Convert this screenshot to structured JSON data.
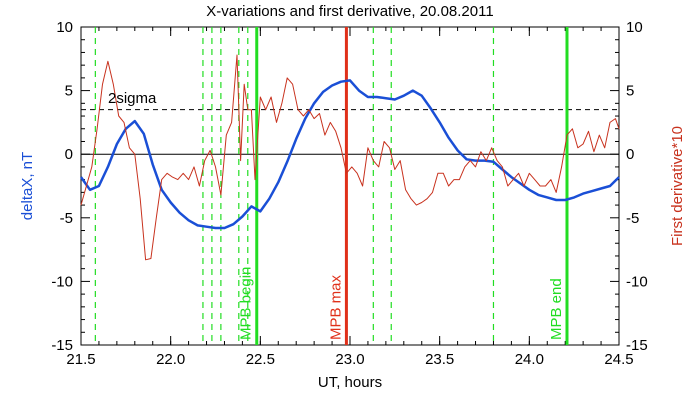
{
  "chart_data": {
    "type": "line",
    "title": "X-variations and first derivative, 20.08.2011",
    "xlabel": "UT, hours",
    "ylabel_left": "deltaX, nT",
    "ylabel_right": "First derivative*10",
    "xlim": [
      21.5,
      24.5
    ],
    "ylim": [
      -15,
      10
    ],
    "x_ticks": [
      21.5,
      22.0,
      22.5,
      23.0,
      23.5,
      24.0,
      24.5
    ],
    "x_tick_labels": [
      "21.5",
      "22.0",
      "22.5",
      "23.0",
      "23.5",
      "24.0",
      "24.5"
    ],
    "y_ticks": [
      -15,
      -10,
      -5,
      0,
      5,
      10
    ],
    "y_tick_labels": [
      "-15",
      "-10",
      "-5",
      "0",
      "5",
      "10"
    ],
    "grid": false,
    "zero_line": 0,
    "threshold": {
      "label": "2sigma",
      "value": 3.5,
      "style": "dashed"
    },
    "colors": {
      "deltaX": "#1a4fd6",
      "derivative": "#c8321e",
      "mpb_max": "#e0301a",
      "mpb_boundary": "#22dd22",
      "dashed_marker": "#22dd22",
      "axes": "#000000"
    },
    "series": [
      {
        "name": "deltaX, nT",
        "axis": "left",
        "x": [
          21.5,
          21.55,
          21.6,
          21.65,
          21.7,
          21.75,
          21.8,
          21.85,
          21.9,
          21.95,
          22.0,
          22.05,
          22.1,
          22.15,
          22.2,
          22.25,
          22.3,
          22.35,
          22.4,
          22.45,
          22.5,
          22.55,
          22.6,
          22.65,
          22.7,
          22.75,
          22.8,
          22.85,
          22.9,
          22.95,
          23.0,
          23.05,
          23.1,
          23.15,
          23.2,
          23.25,
          23.3,
          23.35,
          23.4,
          23.45,
          23.5,
          23.55,
          23.6,
          23.65,
          23.7,
          23.75,
          23.8,
          23.85,
          23.9,
          23.95,
          24.0,
          24.05,
          24.1,
          24.15,
          24.2,
          24.25,
          24.3,
          24.35,
          24.4,
          24.45,
          24.5
        ],
        "y": [
          -1.8,
          -2.8,
          -2.5,
          -1.0,
          0.8,
          2.0,
          2.6,
          1.6,
          -0.8,
          -2.8,
          -3.8,
          -4.6,
          -5.2,
          -5.6,
          -5.7,
          -5.8,
          -5.8,
          -5.5,
          -4.9,
          -4.1,
          -4.5,
          -3.5,
          -2.2,
          -0.6,
          1.2,
          2.8,
          4.0,
          4.9,
          5.4,
          5.7,
          5.8,
          5.0,
          4.5,
          4.5,
          4.4,
          4.3,
          4.6,
          5.0,
          4.6,
          3.6,
          2.5,
          1.3,
          0.3,
          -0.4,
          -0.5,
          -0.5,
          -0.6,
          -1.2,
          -1.8,
          -2.3,
          -2.8,
          -3.2,
          -3.4,
          -3.6,
          -3.6,
          -3.4,
          -3.1,
          -2.9,
          -2.7,
          -2.5,
          -1.8
        ]
      },
      {
        "name": "First derivative*10",
        "axis": "right",
        "x": [
          21.5,
          21.53,
          21.56,
          21.59,
          21.62,
          21.65,
          21.68,
          21.71,
          21.74,
          21.77,
          21.8,
          21.83,
          21.86,
          21.89,
          21.92,
          21.95,
          21.98,
          22.01,
          22.04,
          22.07,
          22.1,
          22.13,
          22.16,
          22.19,
          22.22,
          22.25,
          22.28,
          22.31,
          22.34,
          22.37,
          22.39,
          22.41,
          22.43,
          22.45,
          22.47,
          22.5,
          22.53,
          22.56,
          22.59,
          22.62,
          22.65,
          22.68,
          22.71,
          22.74,
          22.77,
          22.8,
          22.83,
          22.86,
          22.89,
          22.92,
          22.95,
          22.98,
          23.01,
          23.04,
          23.07,
          23.1,
          23.13,
          23.16,
          23.19,
          23.22,
          23.25,
          23.28,
          23.31,
          23.34,
          23.37,
          23.4,
          23.43,
          23.46,
          23.49,
          23.52,
          23.55,
          23.58,
          23.61,
          23.64,
          23.67,
          23.7,
          23.73,
          23.76,
          23.79,
          23.82,
          23.85,
          23.88,
          23.91,
          23.94,
          23.97,
          24.0,
          24.03,
          24.06,
          24.09,
          24.12,
          24.15,
          24.18,
          24.21,
          24.24,
          24.27,
          24.3,
          24.33,
          24.36,
          24.39,
          24.42,
          24.45,
          24.48,
          24.5
        ],
        "y": [
          -4.0,
          -2.5,
          -1.0,
          2.0,
          5.5,
          7.3,
          5.5,
          3.0,
          2.5,
          0.5,
          0.0,
          -3.5,
          -8.3,
          -8.2,
          -5.0,
          -2.0,
          -1.5,
          -1.8,
          -2.0,
          -1.5,
          -2.0,
          -1.0,
          -2.5,
          -0.5,
          0.3,
          -1.0,
          -3.2,
          1.5,
          2.5,
          7.8,
          -0.5,
          5.5,
          3.5,
          3.5,
          -2.0,
          4.5,
          3.5,
          4.5,
          2.5,
          4.0,
          6.0,
          5.5,
          3.5,
          3.0,
          3.5,
          2.8,
          3.2,
          1.5,
          2.5,
          1.8,
          0.5,
          -1.5,
          -1.0,
          -1.5,
          -2.5,
          0.5,
          -0.5,
          -1.0,
          1.0,
          0.5,
          -1.2,
          -0.5,
          -2.8,
          -3.5,
          -4.0,
          -3.8,
          -3.5,
          -3.0,
          -1.5,
          -1.5,
          -2.5,
          -2.0,
          -2.0,
          -1.0,
          -0.5,
          -1.0,
          0.2,
          -0.5,
          0.5,
          -0.5,
          -1.0,
          -2.5,
          -2.0,
          -1.5,
          -2.5,
          -1.5,
          -2.0,
          -2.5,
          -2.5,
          -2.0,
          -3.0,
          -1.0,
          1.5,
          2.0,
          0.5,
          0.8,
          1.8,
          0.2,
          1.5,
          0.5,
          2.5,
          2.8,
          2.0
        ]
      }
    ],
    "vertical_markers": [
      {
        "x": 21.58,
        "style": "dashed",
        "color": "#22dd22",
        "label": ""
      },
      {
        "x": 22.18,
        "style": "dashed",
        "color": "#22dd22",
        "label": ""
      },
      {
        "x": 22.23,
        "style": "dashed",
        "color": "#22dd22",
        "label": ""
      },
      {
        "x": 22.28,
        "style": "dashed",
        "color": "#22dd22",
        "label": ""
      },
      {
        "x": 22.38,
        "style": "dashed",
        "color": "#22dd22",
        "label": ""
      },
      {
        "x": 22.43,
        "style": "dashed",
        "color": "#22dd22",
        "label": ""
      },
      {
        "x": 22.48,
        "style": "solid",
        "color": "#22dd22",
        "label": "MPB begin"
      },
      {
        "x": 22.98,
        "style": "solid",
        "color": "#e0301a",
        "label": "MPB max"
      },
      {
        "x": 23.13,
        "style": "dashed",
        "color": "#22dd22",
        "label": ""
      },
      {
        "x": 23.23,
        "style": "dashed",
        "color": "#22dd22",
        "label": ""
      },
      {
        "x": 23.8,
        "style": "dashed",
        "color": "#22dd22",
        "label": ""
      },
      {
        "x": 24.21,
        "style": "solid",
        "color": "#22dd22",
        "label": "MPB end"
      }
    ]
  }
}
